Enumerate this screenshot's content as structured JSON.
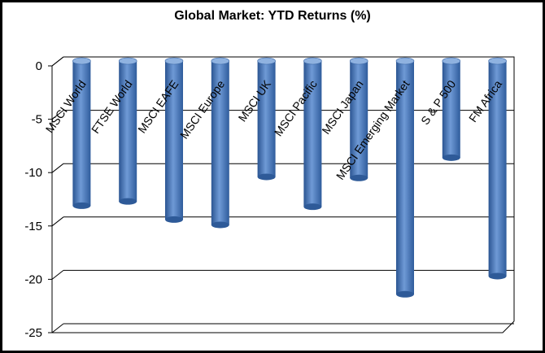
{
  "chart_data": {
    "type": "bar",
    "title": "Global Market:  YTD Returns (%)",
    "categories": [
      "MSCI World",
      "FTSE World",
      "MSCI EAFE",
      "MSCI Europe",
      "MSCI UK",
      "MSCI Pacific",
      "MSCI Japan",
      "MSCI Emerging Market",
      "S & P 500",
      "FM Africa"
    ],
    "values": [
      -13.1,
      -12.7,
      -14.4,
      -14.9,
      -10.4,
      -13.2,
      -10.5,
      -21.4,
      -8.6,
      -19.7
    ],
    "yticks": [
      0,
      -5,
      -10,
      -15,
      -20,
      -25
    ],
    "ylim": [
      -25,
      0
    ],
    "grid": true,
    "legend": "none",
    "bar_color": "#4F81BD"
  }
}
